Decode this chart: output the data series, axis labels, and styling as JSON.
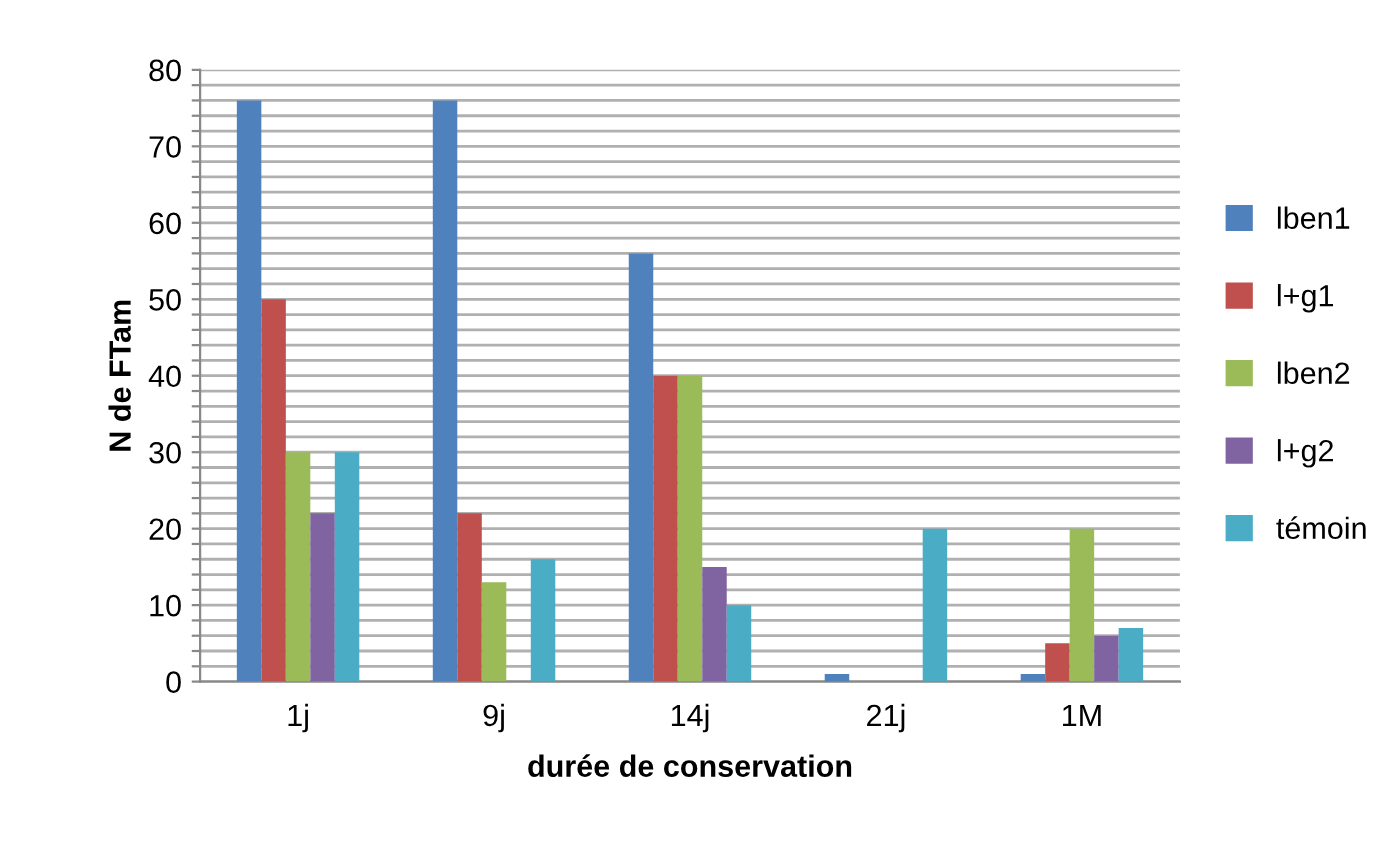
{
  "chart_data": {
    "type": "bar",
    "xlabel": "durée de conservation",
    "ylabel": "N de FTam",
    "categories": [
      "1j",
      "9j",
      "14j",
      "21j",
      "1M"
    ],
    "series": [
      {
        "name": "lben1",
        "color": "#4f81bd",
        "values": [
          76,
          76,
          56,
          1,
          1
        ]
      },
      {
        "name": "l+g1",
        "color": "#c0504d",
        "values": [
          50,
          22,
          40,
          0,
          5
        ]
      },
      {
        "name": "lben2",
        "color": "#9bbb59",
        "values": [
          30,
          13,
          40,
          0,
          20
        ]
      },
      {
        "name": "l+g2",
        "color": "#8064a2",
        "values": [
          22,
          0,
          15,
          0,
          6
        ]
      },
      {
        "name": "témoin",
        "color": "#4bacc6",
        "values": [
          30,
          16,
          10,
          20,
          7
        ]
      }
    ],
    "ylim": [
      0,
      80
    ],
    "yticks": [
      0,
      {
        "value": 2,
        "label": null
      },
      {
        "value": 4,
        "label": null
      },
      {
        "value": 6,
        "label": null
      },
      {
        "value": 8,
        "label": null
      },
      10,
      {
        "value": 12,
        "label": null
      },
      {
        "value": 14,
        "label": null
      },
      {
        "value": 16,
        "label": null
      },
      {
        "value": 18,
        "label": null
      },
      20,
      {
        "value": 22,
        "label": null
      },
      {
        "value": 24,
        "label": null
      },
      {
        "value": 26,
        "label": null
      },
      {
        "value": 28,
        "label": null
      },
      30,
      {
        "value": 32,
        "label": null
      },
      {
        "value": 34,
        "label": null
      },
      {
        "value": 36,
        "label": null
      },
      {
        "value": 38,
        "label": null
      },
      40,
      {
        "value": 42,
        "label": null
      },
      {
        "value": 44,
        "label": null
      },
      {
        "value": 46,
        "label": null
      },
      {
        "value": 48,
        "label": null
      },
      50,
      {
        "value": 52,
        "label": null
      },
      {
        "value": 54,
        "label": null
      },
      {
        "value": 56,
        "label": null
      },
      {
        "value": 58,
        "label": null
      },
      60,
      {
        "value": 62,
        "label": null
      },
      {
        "value": 64,
        "label": null
      },
      {
        "value": 66,
        "label": null
      },
      {
        "value": 68,
        "label": null
      },
      70,
      {
        "value": 72,
        "label": null
      },
      {
        "value": 74,
        "label": null
      },
      {
        "value": 76,
        "label": null
      },
      {
        "value": 78,
        "label": null
      },
      80
    ],
    "grid": "y",
    "legend": "right"
  }
}
